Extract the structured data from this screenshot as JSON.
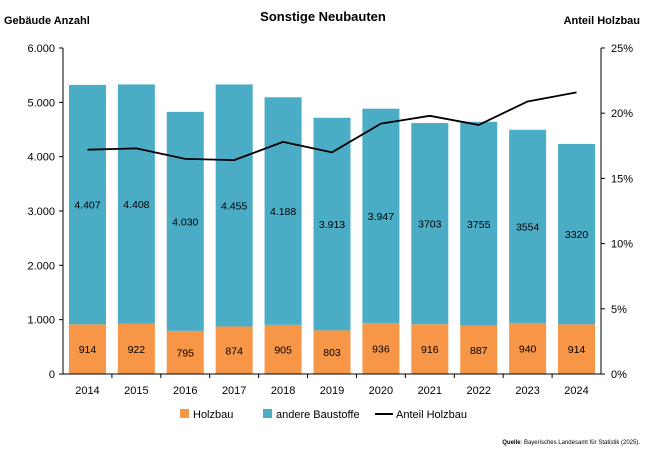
{
  "chart_data": {
    "type": "bar",
    "stacked": true,
    "title": "Sonstige Neubauten",
    "ylabel_left": "Gebäude Anzahl",
    "ylabel_right": "Anteil Holzbau",
    "categories": [
      "2014",
      "2015",
      "2016",
      "2017",
      "2018",
      "2019",
      "2020",
      "2021",
      "2022",
      "2023",
      "2024"
    ],
    "ylim_left": [
      0,
      6000
    ],
    "ylim_right": [
      0,
      25
    ],
    "yticks_left": [
      "0",
      "1.000",
      "2.000",
      "3.000",
      "4.000",
      "5.000",
      "6.000"
    ],
    "yticks_right": [
      "0%",
      "5%",
      "10%",
      "15%",
      "20%",
      "25%"
    ],
    "grid": false,
    "legend_position": "bottom",
    "series": [
      {
        "name": "Holzbau",
        "kind": "bar",
        "color": "#f79646",
        "values": [
          914,
          922,
          795,
          874,
          905,
          803,
          936,
          916,
          887,
          940,
          914
        ],
        "labels": [
          "914",
          "922",
          "795",
          "874",
          "905",
          "803",
          "936",
          "916",
          "887",
          "940",
          "914"
        ]
      },
      {
        "name": "andere Baustoffe",
        "kind": "bar",
        "color": "#4bacc6",
        "values": [
          4407,
          4408,
          4030,
          4455,
          4188,
          3913,
          3947,
          3703,
          3755,
          3554,
          3320
        ],
        "labels": [
          "4.407",
          "4.408",
          "4.030",
          "4.455",
          "4.188",
          "3.913",
          "3.947",
          "3703",
          "3755",
          "3554",
          "3320"
        ]
      },
      {
        "name": "Anteil Holzbau",
        "kind": "line",
        "axis": "right",
        "color": "#000000",
        "values": [
          17.2,
          17.3,
          16.5,
          16.4,
          17.8,
          17.0,
          19.2,
          19.8,
          19.1,
          20.9,
          21.6
        ]
      }
    ],
    "source_label": "Quelle",
    "source_text": ": Bayerisches Landesamt für Statistik (2025)."
  }
}
